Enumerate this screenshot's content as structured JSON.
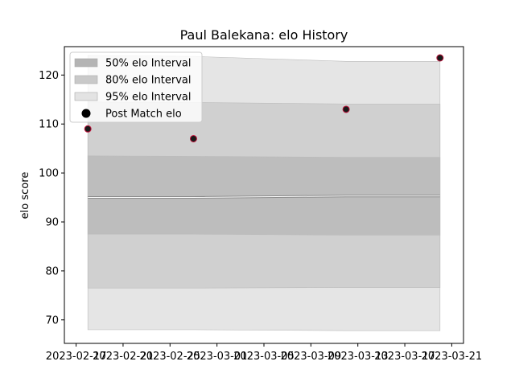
{
  "chart_data": {
    "type": "area",
    "title": "Paul Balekana: elo History",
    "xlabel": "",
    "ylabel": "elo score",
    "xlim": [
      "2023-02-16",
      "2023-03-22"
    ],
    "ylim": [
      65.2,
      125.8
    ],
    "x_ticks": [
      "2023-02-17",
      "2023-02-21",
      "2023-02-25",
      "2023-03-01",
      "2023-03-05",
      "2023-03-09",
      "2023-03-13",
      "2023-03-17",
      "2023-03-21"
    ],
    "y_ticks": [
      70,
      80,
      90,
      100,
      110,
      120
    ],
    "legend_position": "top-left",
    "grid": false,
    "x": [
      "2023-02-18",
      "2023-02-27",
      "2023-03-12",
      "2023-03-20"
    ],
    "mean": [
      95.0,
      95.0,
      95.3,
      95.3
    ],
    "bands": [
      {
        "name": "95% elo Interval",
        "color": "#e5e5e5",
        "lower": [
          68.0,
          68.0,
          67.8,
          67.8
        ],
        "upper": [
          124.0,
          123.8,
          122.8,
          122.8
        ]
      },
      {
        "name": "80% elo Interval",
        "color": "#d0d0d0",
        "lower": [
          76.5,
          76.5,
          76.6,
          76.6
        ],
        "upper": [
          114.5,
          114.4,
          114.1,
          114.1
        ]
      },
      {
        "name": "50% elo Interval",
        "color": "#bdbdbd",
        "lower": [
          87.5,
          87.5,
          87.3,
          87.3
        ],
        "upper": [
          103.5,
          103.4,
          103.2,
          103.2
        ]
      }
    ],
    "legend_order": [
      "50% elo Interval",
      "80% elo Interval",
      "95% elo Interval",
      "Post Match elo"
    ],
    "legend_colors": [
      "#b4b4b4",
      "#c9c9c9",
      "#e3e3e3",
      "#000000"
    ],
    "series": [
      {
        "name": "Post Match elo",
        "type": "scatter",
        "color": "#1a1a1a",
        "edge_color": "#c0143c",
        "values": [
          109.0,
          107.0,
          113.0,
          123.5
        ]
      }
    ]
  }
}
